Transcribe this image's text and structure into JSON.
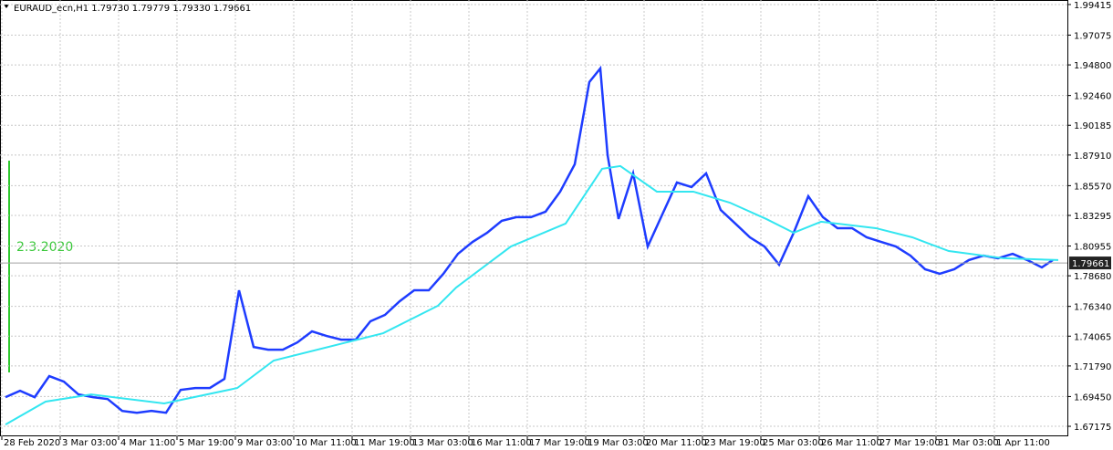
{
  "chart_data": {
    "type": "line",
    "title": "EURAUD_ecn,H1  1.79730 1.79779 1.79330 1.79661",
    "annotation": "2.3.2020",
    "last_price": 1.79661,
    "grid": true,
    "xlim": [
      0,
      585
    ],
    "ylim": [
      1.6641,
      1.9976
    ],
    "xticks": [
      {
        "value": 1,
        "label": "28 Feb 2020"
      },
      {
        "value": 33,
        "label": "3 Mar 03:00"
      },
      {
        "value": 65,
        "label": "4 Mar 11:00"
      },
      {
        "value": 97,
        "label": "5 Mar 19:00"
      },
      {
        "value": 129,
        "label": "9 Mar 03:00"
      },
      {
        "value": 161,
        "label": "10 Mar 11:00"
      },
      {
        "value": 193,
        "label": "11 Mar 19:00"
      },
      {
        "value": 225,
        "label": "13 Mar 03:00"
      },
      {
        "value": 257,
        "label": "16 Mar 11:00"
      },
      {
        "value": 289,
        "label": "17 Mar 19:00"
      },
      {
        "value": 321,
        "label": "19 Mar 03:00"
      },
      {
        "value": 353,
        "label": "20 Mar 11:00"
      },
      {
        "value": 385,
        "label": "23 Mar 19:00"
      },
      {
        "value": 417,
        "label": "25 Mar 03:00"
      },
      {
        "value": 449,
        "label": "26 Mar 11:00"
      },
      {
        "value": 481,
        "label": "27 Mar 19:00"
      },
      {
        "value": 513,
        "label": "31 Mar 03:00"
      },
      {
        "value": 545,
        "label": "1 Apr 11:00"
      }
    ],
    "yticks": [
      1.99415,
      1.97075,
      {
        "value": 1.948,
        "label": "1.94800"
      },
      {
        "value": 1.9246,
        "label": "1.92460"
      },
      1.90185,
      {
        "value": 1.8791,
        "label": "1.87910"
      },
      {
        "value": 1.8557,
        "label": "1.85570"
      },
      1.83295,
      1.80955,
      {
        "value": 1.7868,
        "label": "1.78680"
      },
      {
        "value": 1.7634,
        "label": "1.76340"
      },
      1.74065,
      {
        "value": 1.7179,
        "label": "1.71790"
      },
      {
        "value": 1.6945,
        "label": "1.69450"
      },
      1.67175
    ],
    "series": [
      {
        "color": "#1e3cff",
        "x": [
          3,
          11,
          19,
          27,
          35,
          43,
          51,
          59,
          67,
          75,
          83,
          91,
          99,
          107,
          115,
          123,
          131,
          139,
          147,
          155,
          163,
          171,
          179,
          187,
          195,
          203,
          211,
          219,
          227,
          235,
          243,
          251,
          259,
          267,
          275,
          283,
          291,
          299,
          307,
          315,
          323,
          329,
          333,
          339,
          347,
          355,
          363,
          371,
          379,
          387,
          395,
          403,
          411,
          419,
          427,
          435,
          443,
          451,
          459,
          467,
          475,
          483,
          491,
          499,
          507,
          515,
          523,
          531,
          539,
          547,
          555,
          563,
          571,
          577
        ],
        "values": [
          1.694,
          1.6989,
          1.694,
          1.7101,
          1.7059,
          1.6961,
          1.694,
          1.6926,
          1.6835,
          1.6821,
          1.6835,
          1.6821,
          1.6996,
          1.701,
          1.701,
          1.708,
          1.7757,
          1.7324,
          1.7303,
          1.7303,
          1.7359,
          1.7443,
          1.7408,
          1.738,
          1.738,
          1.752,
          1.7569,
          1.7673,
          1.7757,
          1.7757,
          1.7883,
          1.8036,
          1.8127,
          1.8197,
          1.8288,
          1.8316,
          1.8316,
          1.8358,
          1.8511,
          1.872,
          1.9349,
          1.9453,
          1.879,
          1.8302,
          1.8651,
          1.8092,
          1.8337,
          1.8581,
          1.8546,
          1.8651,
          1.8371,
          1.8267,
          1.8162,
          1.8092,
          1.7953,
          1.8197,
          1.8476,
          1.8316,
          1.8232,
          1.8232,
          1.8162,
          1.8127,
          1.8092,
          1.8022,
          1.7918,
          1.7883,
          1.7918,
          1.7988,
          1.8022,
          1.8002,
          1.8036,
          1.7988,
          1.7932,
          1.7988
        ]
      },
      {
        "color": "#33e6f0",
        "x": [
          3,
          25,
          50,
          90,
          130,
          150,
          190,
          210,
          240,
          250,
          280,
          310,
          330,
          340,
          360,
          380,
          400,
          420,
          435,
          450,
          480,
          500,
          520,
          550,
          580
        ],
        "values": [
          1.6731,
          1.6906,
          1.6961,
          1.6892,
          1.701,
          1.722,
          1.7359,
          1.7429,
          1.7639,
          1.7778,
          1.8092,
          1.8267,
          1.8686,
          1.8707,
          1.8511,
          1.8511,
          1.8427,
          1.8302,
          1.8197,
          1.8281,
          1.8232,
          1.8162,
          1.8057,
          1.8002,
          1.7988
        ]
      }
    ]
  }
}
